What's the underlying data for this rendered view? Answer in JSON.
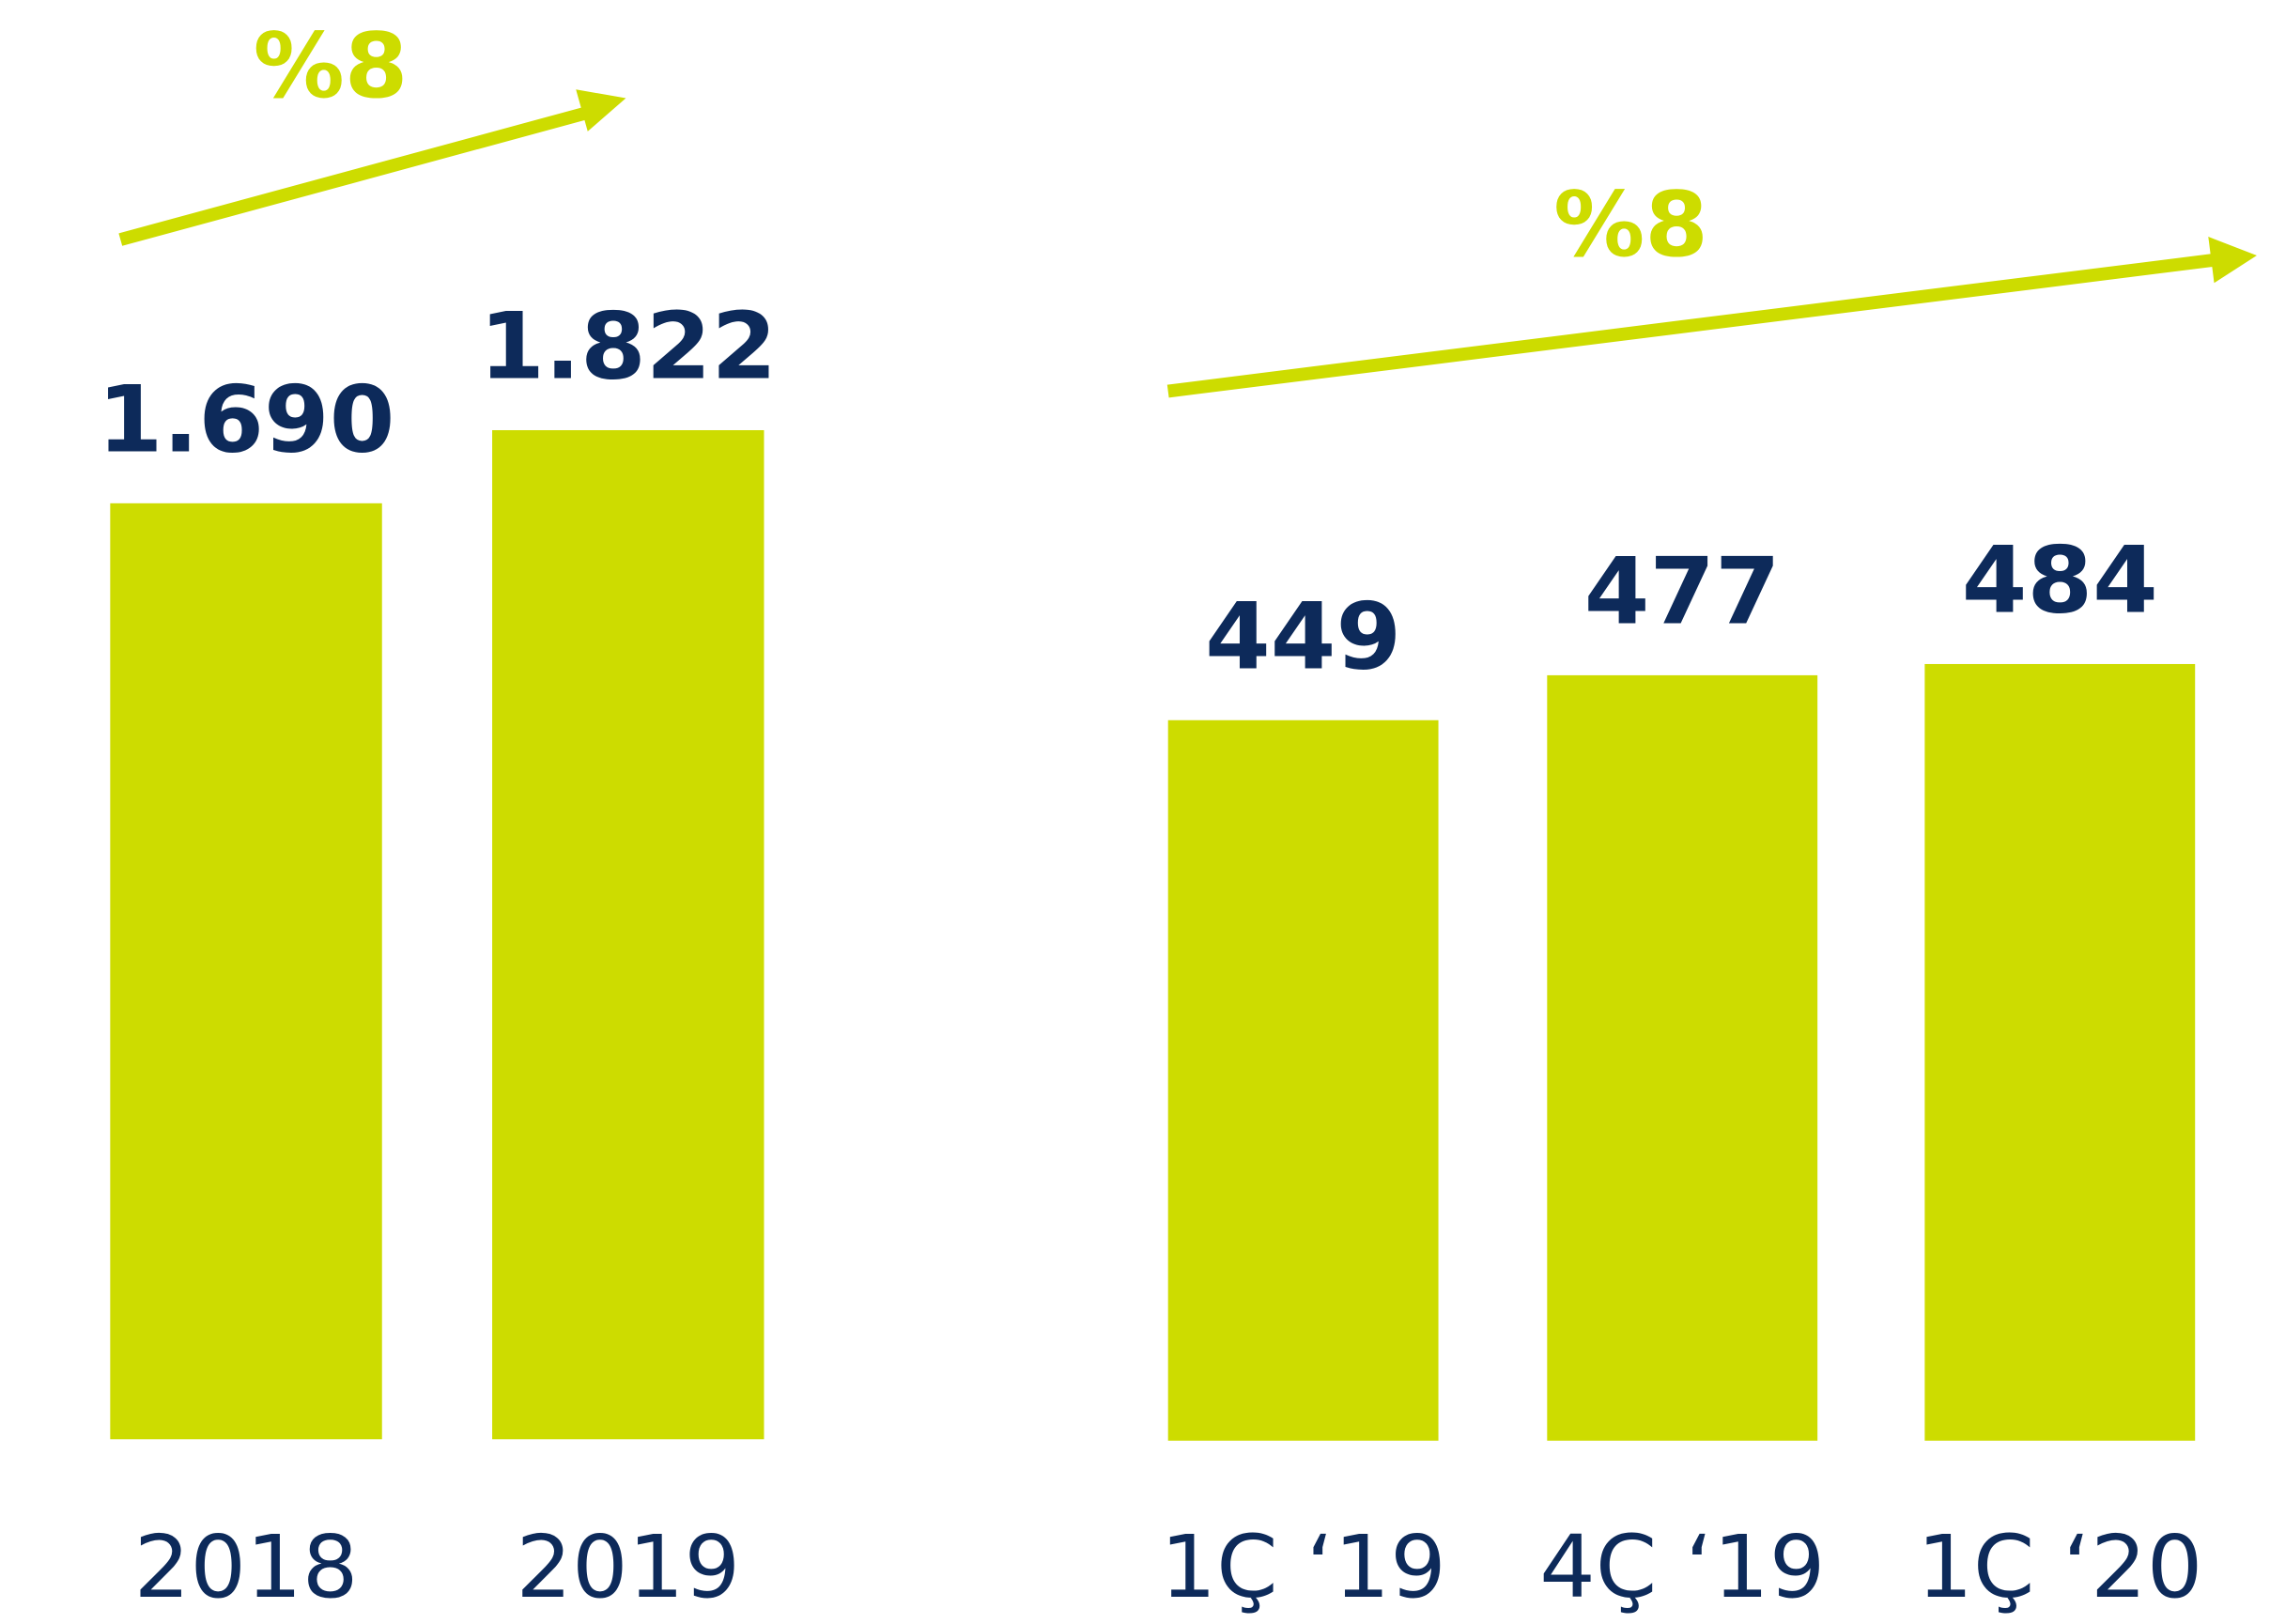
{
  "chart_data": [
    {
      "type": "bar",
      "annotation": "%8",
      "color": "#cddc00",
      "categories": [
        "2018",
        "2019"
      ],
      "values": [
        1690,
        1822
      ],
      "value_labels": [
        "1.690",
        "1.822"
      ]
    },
    {
      "type": "bar",
      "annotation": "%8",
      "color": "#cddc00",
      "categories": [
        "1Ç ‘19",
        "4Ç ‘19",
        "1Ç ‘20"
      ],
      "values": [
        449,
        477,
        484
      ]
    }
  ]
}
